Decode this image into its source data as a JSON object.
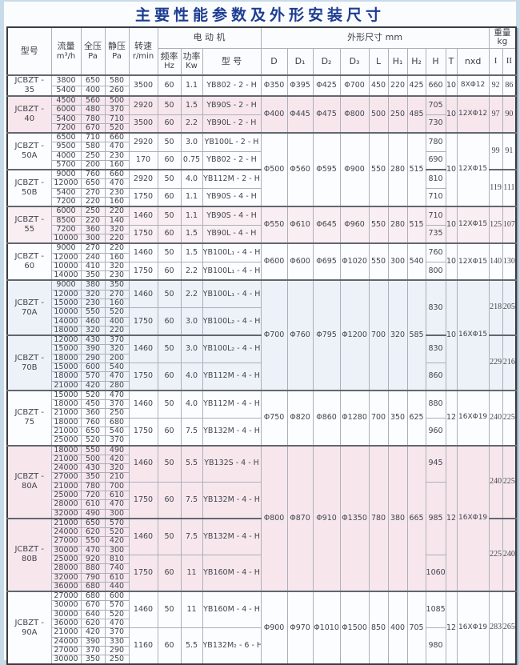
{
  "title": "主要性能参数及外形安装尺寸",
  "header": {
    "model": "型号",
    "flow_l1": "流量",
    "flow_l2": "m³/h",
    "tp_l1": "全压",
    "tp_l2": "Pa",
    "sp_l1": "静压",
    "sp_l2": "Pa",
    "speed_l1": "转速",
    "speed_l2": "r/min",
    "motor_group": "电 动 机",
    "freq_l1": "频率",
    "freq_l2": "Hz",
    "power_l1": "功率",
    "power_l2": "Kw",
    "motor_model": "型  号",
    "dims_group": "外形尺寸 mm",
    "dims_cols": [
      "D",
      "D₁",
      "D₂",
      "D₃",
      "L",
      "H₁",
      "H₂",
      "H",
      "T",
      "nxd"
    ],
    "weight_l1": "重量",
    "weight_l2": "kg",
    "weight_cols": [
      "I",
      "II"
    ]
  },
  "colors": {
    "title": "#1d3d92",
    "tints": {
      "plain": "#fcfdfe",
      "pink": "#f7e7ed",
      "pinklight": "#f9eef2",
      "blue": "#edf2f8"
    }
  },
  "groups": [
    {
      "model": [
        "JCBZT -",
        "35"
      ],
      "tint": "plain",
      "weight": [
        "92",
        "86"
      ],
      "rows": [
        {
          "speed": "3500",
          "freq": "60",
          "power": "1.1",
          "motor": "YB802 - 2 - H",
          "lines": [
            [
              "3800",
              "650",
              "580"
            ],
            [
              "5400",
              "400",
              "260"
            ]
          ]
        }
      ]
    },
    {
      "model": [
        "JCBZT -",
        "40"
      ],
      "tint": "pink",
      "weight": [
        "97",
        "90"
      ],
      "rows": [
        {
          "speed": "2920",
          "freq": "50",
          "power": "1.5",
          "motor": "YB90S - 2 - H",
          "lines": [
            [
              "4500",
              "560",
              "500"
            ],
            [
              "6000",
              "480",
              "370"
            ]
          ]
        },
        {
          "speed": "3500",
          "freq": "60",
          "power": "2.2",
          "motor": "YB90L - 2 - H",
          "lines": [
            [
              "5400",
              "780",
              "710"
            ],
            [
              "7200",
              "670",
              "520"
            ]
          ]
        }
      ]
    },
    {
      "model": [
        "JCBZT -",
        "50A"
      ],
      "tint": "plain",
      "weight": [
        "99",
        "91"
      ],
      "rows": [
        {
          "speed": "2920",
          "freq": "50",
          "power": "3.0",
          "motor": "YB100L - 2 - H",
          "lines": [
            [
              "6500",
              "710",
              "660"
            ],
            [
              "9500",
              "580",
              "470"
            ]
          ]
        },
        {
          "speed": "170",
          "freq": "60",
          "power": "0.75",
          "motor": "YB802 - 2 - H",
          "lines": [
            [
              "4000",
              "250",
              "230"
            ],
            [
              "5700",
              "200",
              "160"
            ]
          ]
        }
      ]
    },
    {
      "model": [
        "JCBZT -",
        "50B"
      ],
      "tint": "plain",
      "weight": [
        "119",
        "111"
      ],
      "rows": [
        {
          "speed": "2920",
          "freq": "50",
          "power": "4.0",
          "motor": "YB112M - 2 - H",
          "lines": [
            [
              "9000",
              "760",
              "660"
            ],
            [
              "12000",
              "650",
              "470"
            ]
          ]
        },
        {
          "speed": "1750",
          "freq": "60",
          "power": "1.1",
          "motor": "YB90S - 4 - H",
          "lines": [
            [
              "5400",
              "270",
              "230"
            ],
            [
              "7200",
              "220",
              "160"
            ]
          ]
        }
      ]
    },
    {
      "model": [
        "JCBZT -",
        "55"
      ],
      "tint": "pinklight",
      "weight": [
        "125",
        "107"
      ],
      "rows": [
        {
          "speed": "1460",
          "freq": "50",
          "power": "1.1",
          "motor": "YB90S - 4 - H",
          "lines": [
            [
              "6000",
              "250",
              "220"
            ],
            [
              "8500",
              "220",
              "140"
            ]
          ]
        },
        {
          "speed": "1750",
          "freq": "60",
          "power": "1.5",
          "motor": "YB90L - 4 - H",
          "lines": [
            [
              "7200",
              "360",
              "320"
            ],
            [
              "10000",
              "300",
              "220"
            ]
          ]
        }
      ]
    },
    {
      "model": [
        "JCBZT -",
        "60"
      ],
      "tint": "plain",
      "weight": [
        "140",
        "130"
      ],
      "rows": [
        {
          "speed": "1460",
          "freq": "50",
          "power": "1.5",
          "motor": "YB100L₁ - 4 - H",
          "lines": [
            [
              "9000",
              "270",
              "220"
            ],
            [
              "12000",
              "240",
              "160"
            ]
          ]
        },
        {
          "speed": "1750",
          "freq": "60",
          "power": "2.2",
          "motor": "YB100L₁ - 4 - H",
          "lines": [
            [
              "10000",
              "410",
              "320"
            ],
            [
              "14000",
              "350",
              "230"
            ]
          ]
        }
      ]
    },
    {
      "model": [
        "JCBZT -",
        "70A"
      ],
      "tint": "blue",
      "weight": [
        "218",
        "205"
      ],
      "rows": [
        {
          "speed": "1460",
          "freq": "50",
          "power": "2.2",
          "motor": "YB100L₁ - 4 - H",
          "lines": [
            [
              "9000",
              "380",
              "350"
            ],
            [
              "12000",
              "320",
              "270"
            ],
            [
              "15000",
              "230",
              "160"
            ]
          ]
        },
        {
          "speed": "1750",
          "freq": "60",
          "power": "3.0",
          "motor": "YB100L₂ - 4 - H",
          "lines": [
            [
              "10000",
              "550",
              "520"
            ],
            [
              "14000",
              "460",
              "400"
            ],
            [
              "18000",
              "320",
              "220"
            ]
          ]
        }
      ]
    },
    {
      "model": [
        "JCBZT -",
        "70B"
      ],
      "tint": "blue",
      "weight": [
        "229",
        "216"
      ],
      "rows": [
        {
          "speed": "1460",
          "freq": "50",
          "power": "3.0",
          "motor": "YB100L₂ - 4 - H",
          "lines": [
            [
              "12000",
              "430",
              "370"
            ],
            [
              "15000",
              "390",
              "320"
            ],
            [
              "18000",
              "290",
              "200"
            ]
          ]
        },
        {
          "speed": "1750",
          "freq": "60",
          "power": "4.0",
          "motor": "YB112M - 4 - H",
          "lines": [
            [
              "15000",
              "600",
              "540"
            ],
            [
              "18000",
              "570",
              "470"
            ],
            [
              "21000",
              "420",
              "280"
            ]
          ]
        }
      ]
    },
    {
      "model": [
        "JCBZT -",
        "75"
      ],
      "tint": "plain",
      "weight": [
        "240",
        "225"
      ],
      "rows": [
        {
          "speed": "1460",
          "freq": "50",
          "power": "4.0",
          "motor": "YB112M - 4 - H",
          "lines": [
            [
              "15000",
              "520",
              "470"
            ],
            [
              "18000",
              "450",
              "370"
            ],
            [
              "21000",
              "360",
              "250"
            ]
          ]
        },
        {
          "speed": "1750",
          "freq": "60",
          "power": "7.5",
          "motor": "YB132M - 4 - H",
          "lines": [
            [
              "18000",
              "760",
              "680"
            ],
            [
              "21000",
              "650",
              "540"
            ],
            [
              "25000",
              "520",
              "370"
            ]
          ]
        }
      ]
    },
    {
      "model": [
        "JCBZT -",
        "80A"
      ],
      "tint": "pink",
      "weight": [
        "240",
        "225"
      ],
      "rows": [
        {
          "speed": "1460",
          "freq": "50",
          "power": "5.5",
          "motor": "YB132S - 4 - H",
          "lines": [
            [
              "18000",
              "550",
              "490"
            ],
            [
              "21000",
              "500",
              "420"
            ],
            [
              "24000",
              "430",
              "320"
            ],
            [
              "27000",
              "350",
              "210"
            ]
          ]
        },
        {
          "speed": "1750",
          "freq": "60",
          "power": "7.5",
          "motor": "YB132M - 4 - H",
          "lines": [
            [
              "21000",
              "780",
              "700"
            ],
            [
              "25000",
              "720",
              "610"
            ],
            [
              "28000",
              "610",
              "470"
            ],
            [
              "32000",
              "490",
              "300"
            ]
          ]
        }
      ]
    },
    {
      "model": [
        "JCBZT -",
        "80B"
      ],
      "tint": "pink",
      "weight": [
        "225",
        "240"
      ],
      "rows": [
        {
          "speed": "1460",
          "freq": "50",
          "power": "7.5",
          "motor": "YB132M - 4 - H",
          "lines": [
            [
              "21000",
              "650",
              "570"
            ],
            [
              "24000",
              "620",
              "520"
            ],
            [
              "27000",
              "550",
              "420"
            ],
            [
              "30000",
              "470",
              "300"
            ]
          ]
        },
        {
          "speed": "1750",
          "freq": "60",
          "power": "11",
          "motor": "YB160M - 4 - H",
          "lines": [
            [
              "25000",
              "920",
              "810"
            ],
            [
              "28000",
              "880",
              "740"
            ],
            [
              "32000",
              "790",
              "610"
            ],
            [
              "36000",
              "680",
              "440"
            ]
          ]
        }
      ]
    },
    {
      "model": [
        "JCBZT -",
        "90A"
      ],
      "tint": "plain",
      "weight": [
        "283",
        "265"
      ],
      "rows": [
        {
          "speed": "1460",
          "freq": "50",
          "power": "11",
          "motor": "YB160M - 4 - H",
          "lines": [
            [
              "27000",
              "680",
              "600"
            ],
            [
              "30000",
              "670",
              "570"
            ],
            [
              "30000",
              "640",
              "520"
            ],
            [
              "36000",
              "620",
              "470"
            ]
          ]
        },
        {
          "speed": "1160",
          "freq": "60",
          "power": "5.5",
          "motor": "YB132M₂ - 6 - H",
          "lines": [
            [
              "21000",
              "420",
              "370"
            ],
            [
              "24000",
              "390",
              "330"
            ],
            [
              "27000",
              "370",
              "290"
            ],
            [
              "30000",
              "350",
              "250"
            ]
          ]
        }
      ]
    }
  ],
  "dim_blocks": [
    {
      "group_count": 1,
      "values": [
        "Φ350",
        "Φ395",
        "Φ425",
        "Φ700",
        "450",
        "220",
        "425"
      ],
      "t": "10",
      "nxd": "8XΦ12"
    },
    {
      "group_count": 1,
      "values": [
        "Φ400",
        "Φ445",
        "Φ475",
        "Φ800",
        "500",
        "250",
        "485"
      ],
      "t": "10",
      "nxd": "12XΦ12"
    },
    {
      "group_count": 2,
      "values": [
        "Φ500",
        "Φ560",
        "Φ595",
        "Φ900",
        "550",
        "280",
        "515"
      ],
      "t": "10",
      "nxd": "12XΦ15"
    },
    {
      "group_count": 1,
      "values": [
        "Φ550",
        "Φ610",
        "Φ645",
        "Φ960",
        "550",
        "280",
        "515"
      ],
      "t": "10",
      "nxd": "12XΦ15"
    },
    {
      "group_count": 1,
      "values": [
        "Φ600",
        "Φ600",
        "Φ695",
        "Φ1020",
        "550",
        "300",
        "540"
      ],
      "t": "10",
      "nxd": "12XΦ15"
    },
    {
      "group_count": 2,
      "values": [
        "Φ700",
        "Φ760",
        "Φ795",
        "Φ1200",
        "700",
        "320",
        "585"
      ],
      "t": "10",
      "nxd": "16XΦ15"
    },
    {
      "group_count": 1,
      "values": [
        "Φ750",
        "Φ820",
        "Φ860",
        "Φ1280",
        "700",
        "350",
        "625"
      ],
      "t": "12",
      "nxd": "16XΦ19"
    },
    {
      "group_count": 2,
      "values": [
        "Φ800",
        "Φ870",
        "Φ910",
        "Φ1350",
        "780",
        "380",
        "665"
      ],
      "t": "12",
      "nxd": "16XΦ19"
    },
    {
      "group_count": 1,
      "values": [
        "Φ900",
        "Φ970",
        "Φ1010",
        "Φ1500",
        "850",
        "400",
        "705"
      ],
      "t": "12",
      "nxd": "16XΦ19"
    }
  ],
  "h_cells": [
    {
      "span": 2,
      "v": "660"
    },
    {
      "span": 2,
      "v": "705"
    },
    {
      "span": 2,
      "v": "730"
    },
    {
      "span": 2,
      "v": "780"
    },
    {
      "span": 2,
      "v": "690"
    },
    {
      "span": 2,
      "v": "810"
    },
    {
      "span": 2,
      "v": "710"
    },
    {
      "span": 2,
      "v": "710"
    },
    {
      "span": 2,
      "v": "735"
    },
    {
      "span": 2,
      "v": "760"
    },
    {
      "span": 2,
      "v": "800"
    },
    {
      "span": 6,
      "v": "830"
    },
    {
      "span": 3,
      "v": "830"
    },
    {
      "span": 3,
      "v": "860"
    },
    {
      "span": 3,
      "v": "880"
    },
    {
      "span": 3,
      "v": "960"
    },
    {
      "span": 4,
      "v": "945"
    },
    {
      "span": 8,
      "v": "985"
    },
    {
      "span": 4,
      "v": "1060"
    },
    {
      "span": 4,
      "v": "1085"
    },
    {
      "span": 4,
      "v": "980"
    }
  ]
}
